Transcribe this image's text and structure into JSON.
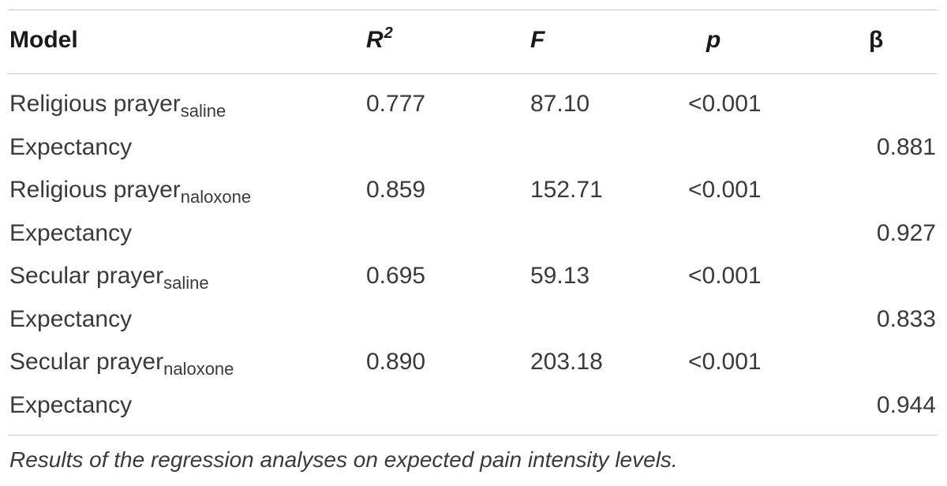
{
  "table": {
    "headers": {
      "model": "Model",
      "r2_base": "R",
      "r2_sup": "2",
      "f": "F",
      "p": "p",
      "beta": "β"
    },
    "rows": [
      {
        "label": "Religious prayer",
        "sub": "saline",
        "r2": "0.777",
        "f": "87.10",
        "p": "<0.001",
        "beta": ""
      },
      {
        "label": "Expectancy",
        "sub": "",
        "r2": "",
        "f": "",
        "p": "",
        "beta": "0.881"
      },
      {
        "label": "Religious prayer",
        "sub": "naloxone",
        "r2": "0.859",
        "f": "152.71",
        "p": "<0.001",
        "beta": ""
      },
      {
        "label": "Expectancy",
        "sub": "",
        "r2": "",
        "f": "",
        "p": "",
        "beta": "0.927"
      },
      {
        "label": "Secular prayer",
        "sub": "saline",
        "r2": "0.695",
        "f": "59.13",
        "p": "<0.001",
        "beta": ""
      },
      {
        "label": "Expectancy",
        "sub": "",
        "r2": "",
        "f": "",
        "p": "",
        "beta": "0.833"
      },
      {
        "label": "Secular prayer",
        "sub": "naloxone",
        "r2": "0.890",
        "f": "203.18",
        "p": "<0.001",
        "beta": ""
      },
      {
        "label": "Expectancy",
        "sub": "",
        "r2": "",
        "f": "",
        "p": "",
        "beta": "0.944"
      }
    ]
  },
  "caption": "Results of the regression analyses on expected pain intensity levels."
}
